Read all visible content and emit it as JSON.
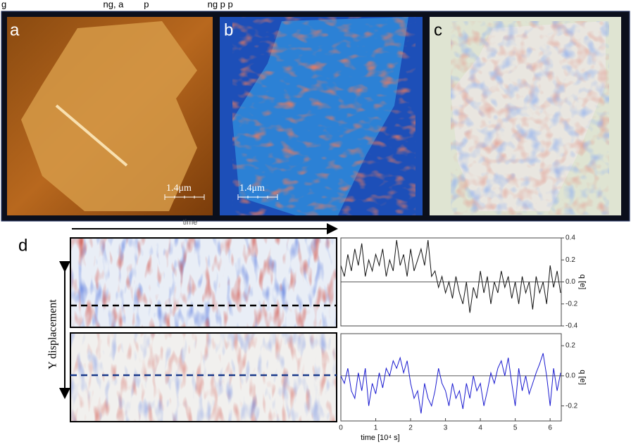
{
  "caption_fragment": "g                                      ng, a        p                       ng p p",
  "panels": {
    "a": "a",
    "b": "b",
    "c": "c",
    "d": "d"
  },
  "scale_bars": [
    "1.4μm",
    "1.4μm"
  ],
  "arrow_label": "time",
  "y_axis_label": "Y displacement",
  "chart_data": [
    {
      "type": "line",
      "ylabel": "q [e]",
      "xlim": [
        0,
        6.32
      ],
      "ylim": [
        -0.4,
        0.4
      ],
      "yticks": [
        0.4,
        0.2,
        {
          "value": 0,
          "label": "0.0"
        },
        -0.2,
        -0.4
      ],
      "x": [
        0,
        0.1,
        0.2,
        0.3,
        0.4,
        0.5,
        0.6,
        0.7,
        0.8,
        0.9,
        1.0,
        1.1,
        1.2,
        1.3,
        1.4,
        1.5,
        1.6,
        1.7,
        1.8,
        1.9,
        2.0,
        2.1,
        2.2,
        2.3,
        2.4,
        2.5,
        2.6,
        2.7,
        2.8,
        2.9,
        3.0,
        3.1,
        3.2,
        3.3,
        3.4,
        3.5,
        3.6,
        3.7,
        3.8,
        3.9,
        4.0,
        4.1,
        4.2,
        4.3,
        4.4,
        4.5,
        4.6,
        4.7,
        4.8,
        4.9,
        5.0,
        5.1,
        5.2,
        5.3,
        5.4,
        5.5,
        5.6,
        5.7,
        5.8,
        5.9,
        6.0,
        6.1,
        6.2,
        6.3
      ],
      "series": [
        {
          "color": "#111111",
          "values": [
            0.15,
            0.05,
            0.25,
            0.1,
            0.3,
            0.15,
            0.35,
            0.05,
            0.2,
            0.1,
            0.25,
            0.15,
            0.3,
            0.05,
            0.2,
            0.1,
            0.38,
            0.15,
            0.25,
            0.05,
            0.3,
            0.1,
            0.2,
            0.3,
            0.15,
            0.38,
            0.05,
            0.1,
            -0.05,
            0.05,
            -0.1,
            0.0,
            -0.15,
            0.05,
            -0.1,
            -0.2,
            0.0,
            -0.28,
            -0.05,
            -0.15,
            0.1,
            -0.1,
            0.05,
            -0.2,
            0.0,
            -0.1,
            0.1,
            -0.05,
            0.05,
            -0.15,
            0.0,
            -0.2,
            0.05,
            -0.1,
            0.0,
            -0.25,
            0.05,
            -0.1,
            0.0,
            -0.2,
            0.15,
            -0.05,
            0.1,
            -0.1
          ]
        }
      ]
    },
    {
      "type": "line",
      "ylabel": "q [e]",
      "xlabel": "time [10⁴ s]",
      "xlim": [
        0,
        6.32
      ],
      "ylim": [
        -0.3,
        0.28
      ],
      "xticks": [
        0,
        1,
        2,
        3,
        4,
        5,
        6
      ],
      "yticks": [
        0.2,
        {
          "value": 0,
          "label": "0.0"
        },
        -0.2
      ],
      "x": [
        0,
        0.1,
        0.2,
        0.3,
        0.4,
        0.5,
        0.6,
        0.7,
        0.8,
        0.9,
        1.0,
        1.1,
        1.2,
        1.3,
        1.4,
        1.5,
        1.6,
        1.7,
        1.8,
        1.9,
        2.0,
        2.1,
        2.2,
        2.3,
        2.4,
        2.5,
        2.6,
        2.7,
        2.8,
        2.9,
        3.0,
        3.1,
        3.2,
        3.3,
        3.4,
        3.5,
        3.6,
        3.7,
        3.8,
        3.9,
        4.0,
        4.1,
        4.2,
        4.3,
        4.4,
        4.5,
        4.6,
        4.7,
        4.8,
        4.9,
        5.0,
        5.1,
        5.2,
        5.3,
        5.4,
        5.5,
        5.6,
        5.7,
        5.8,
        5.9,
        6.0,
        6.1,
        6.2,
        6.3
      ],
      "series": [
        {
          "color": "#1a1ad0",
          "values": [
            0.0,
            -0.05,
            0.05,
            -0.1,
            -0.15,
            0.02,
            -0.1,
            0.05,
            -0.2,
            -0.05,
            -0.12,
            0.02,
            -0.08,
            0.05,
            0.0,
            0.1,
            0.05,
            0.12,
            0.02,
            0.1,
            -0.05,
            -0.15,
            -0.1,
            -0.25,
            -0.05,
            -0.15,
            -0.2,
            -0.1,
            0.05,
            -0.05,
            -0.1,
            -0.2,
            -0.05,
            -0.15,
            -0.1,
            -0.22,
            -0.05,
            -0.15,
            0.0,
            -0.1,
            -0.05,
            -0.2,
            -0.1,
            0.02,
            -0.05,
            0.05,
            0.1,
            0.0,
            0.12,
            -0.05,
            -0.2,
            0.05,
            -0.1,
            0.0,
            -0.12,
            -0.05,
            0.02,
            0.08,
            0.15,
            0.0,
            -0.2,
            0.05,
            -0.1,
            0.02
          ]
        }
      ]
    }
  ]
}
